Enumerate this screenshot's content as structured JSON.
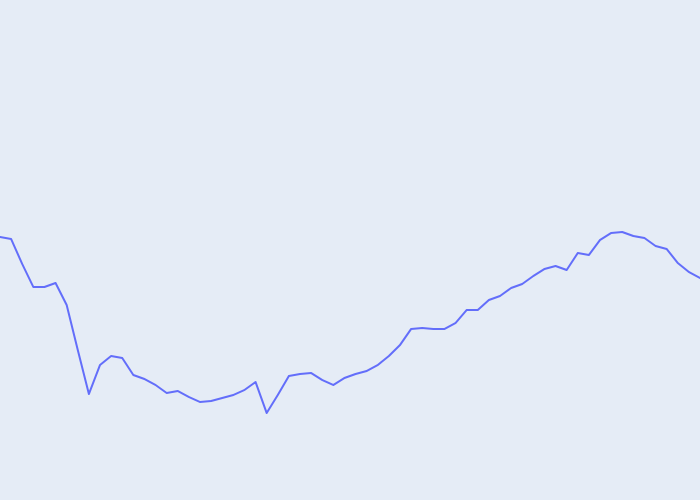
{
  "chart_data": {
    "type": "line",
    "title": "",
    "xlabel": "",
    "ylabel": "",
    "grid": false,
    "legend": "none",
    "background_color": "#e5ecf6",
    "line_color": "#636efa",
    "xlim": [
      0,
      63
    ],
    "ylim": [
      0,
      100
    ],
    "series": [
      {
        "values": [
          52.6,
          52.2,
          47.2,
          42.6,
          42.6,
          43.4,
          39.0,
          30.0,
          21.2,
          27.0,
          28.8,
          28.4,
          25.0,
          24.2,
          23.0,
          21.4,
          21.8,
          20.6,
          19.6,
          19.8,
          20.4,
          21.0,
          22.0,
          23.6,
          17.4,
          21.0,
          24.8,
          25.2,
          25.4,
          24.0,
          23.0,
          24.4,
          25.2,
          25.8,
          27.0,
          28.8,
          31.0,
          34.2,
          34.4,
          34.2,
          34.2,
          35.4,
          38.0,
          38.0,
          40.0,
          40.8,
          42.4,
          43.2,
          44.8,
          46.2,
          46.8,
          46.0,
          49.4,
          49.0,
          52.0,
          53.4,
          53.6,
          52.8,
          52.4,
          50.8,
          50.2,
          47.4,
          45.6,
          44.4
        ]
      }
    ]
  }
}
